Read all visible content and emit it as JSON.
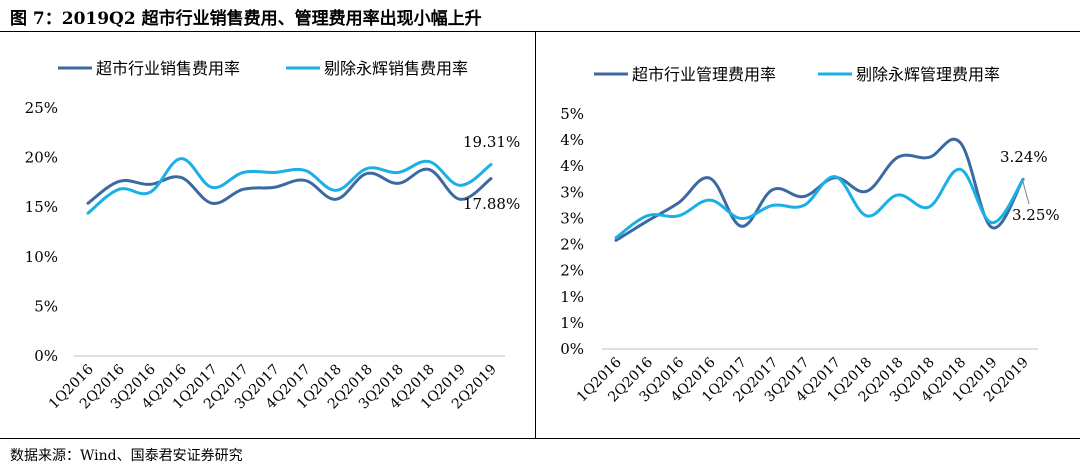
{
  "title": "图 7：2019Q2 超市行业销售费用、管理费用率出现小幅上升",
  "source": "数据来源：Wind、国泰君安证券研究",
  "colors": {
    "dark": "#3b6aa0",
    "light": "#1ab0e6"
  },
  "chart_data": [
    {
      "type": "line",
      "categories": [
        "1Q2016",
        "2Q2016",
        "3Q2016",
        "4Q2016",
        "1Q2017",
        "2Q2017",
        "3Q2017",
        "4Q2017",
        "1Q2018",
        "2Q2018",
        "3Q2018",
        "4Q2018",
        "1Q2019",
        "2Q2019"
      ],
      "y_ticks": [
        "0%",
        "5%",
        "10%",
        "15%",
        "20%",
        "25%"
      ],
      "ylim": [
        0,
        25
      ],
      "series": [
        {
          "name": "超市行业销售费用率",
          "color": "#3b6aa0",
          "values": [
            15.4,
            17.6,
            17.3,
            18.0,
            15.4,
            16.8,
            17.0,
            17.7,
            15.8,
            18.4,
            17.4,
            18.8,
            15.8,
            17.88
          ]
        },
        {
          "name": "剔除永辉销售费用率",
          "color": "#1ab0e6",
          "values": [
            14.4,
            16.8,
            16.5,
            19.9,
            17.0,
            18.5,
            18.5,
            18.7,
            16.7,
            18.9,
            18.5,
            19.6,
            17.2,
            19.31
          ]
        }
      ],
      "annotations": [
        "19.31%",
        "17.88%"
      ]
    },
    {
      "type": "line",
      "categories": [
        "1Q2016",
        "2Q2016",
        "3Q2016",
        "4Q2016",
        "1Q2017",
        "2Q2017",
        "3Q2017",
        "4Q2017",
        "1Q2018",
        "2Q2018",
        "3Q2018",
        "4Q2018",
        "1Q2019",
        "2Q2019"
      ],
      "y_ticks": [
        "0%",
        "1%",
        "1%",
        "2%",
        "2%",
        "3%",
        "3%",
        "4%",
        "4%",
        "5%"
      ],
      "ylim": [
        0,
        4.5
      ],
      "series": [
        {
          "name": "超市行业管理费用率",
          "color": "#3b6aa0",
          "values": [
            2.08,
            2.45,
            2.8,
            3.27,
            2.35,
            3.05,
            2.92,
            3.28,
            3.02,
            3.67,
            3.67,
            3.95,
            2.33,
            3.25
          ]
        },
        {
          "name": "剔除永辉管理费用率",
          "color": "#1ab0e6",
          "values": [
            2.13,
            2.55,
            2.55,
            2.85,
            2.5,
            2.75,
            2.75,
            3.3,
            2.55,
            2.95,
            2.72,
            3.44,
            2.42,
            3.24
          ]
        }
      ],
      "annotations": [
        "3.24%",
        "3.25%"
      ]
    }
  ]
}
